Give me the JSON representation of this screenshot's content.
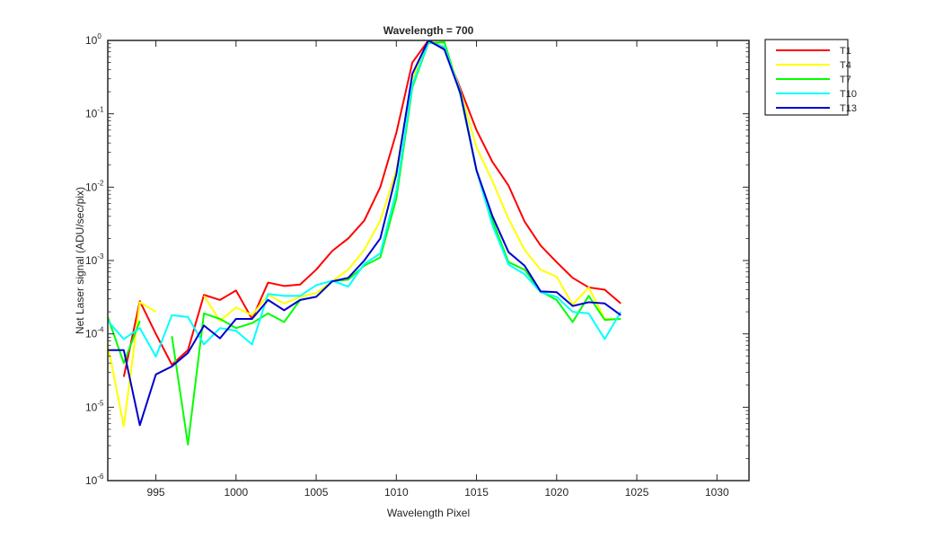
{
  "chart_data": {
    "type": "line",
    "title": "Wavelength = 700",
    "xlabel": "Wavelength Pixel",
    "ylabel": "Net Laser signal  (ADU/sec/pix)",
    "xlim": [
      992,
      1032
    ],
    "ylim": [
      1e-06,
      1
    ],
    "yscale": "log",
    "xticks": [
      995,
      1000,
      1005,
      1010,
      1015,
      1020,
      1025,
      1030
    ],
    "yticks": [
      {
        "exp": -6,
        "label": "10",
        "sup": "-6"
      },
      {
        "exp": -5,
        "label": "10",
        "sup": "-5"
      },
      {
        "exp": -4,
        "label": "10",
        "sup": "-4"
      },
      {
        "exp": -3,
        "label": "10",
        "sup": "-3"
      },
      {
        "exp": -2,
        "label": "10",
        "sup": "-2"
      },
      {
        "exp": -1,
        "label": "10",
        "sup": "-1"
      },
      {
        "exp": 0,
        "label": "10",
        "sup": "0"
      }
    ],
    "grid": false,
    "legend_position": "outside-top-right",
    "series": [
      {
        "name": "T1",
        "color": "#ff0000",
        "segments": [
          [
            [
              993,
              2.6e-05
            ],
            [
              994,
              0.00028
            ],
            [
              995,
              0.0001
            ],
            [
              996,
              3.8e-05
            ],
            [
              997,
              6e-05
            ],
            [
              998,
              0.00034
            ],
            [
              999,
              0.00029
            ],
            [
              1000,
              0.00039
            ],
            [
              1001,
              0.00016
            ],
            [
              1002,
              0.0005
            ],
            [
              1003,
              0.00045
            ],
            [
              1004,
              0.00047
            ],
            [
              1005,
              0.00075
            ],
            [
              1006,
              0.00135
            ],
            [
              1007,
              0.002
            ],
            [
              1008,
              0.0035
            ],
            [
              1009,
              0.01
            ],
            [
              1010,
              0.055
            ],
            [
              1011,
              0.5
            ],
            [
              1012,
              1.0
            ],
            [
              1013,
              0.8
            ],
            [
              1014,
              0.22
            ],
            [
              1015,
              0.06
            ],
            [
              1016,
              0.022
            ],
            [
              1017,
              0.0105
            ],
            [
              1018,
              0.0034
            ],
            [
              1019,
              0.0016
            ],
            [
              1020,
              0.00095
            ],
            [
              1021,
              0.00058
            ],
            [
              1022,
              0.00043
            ],
            [
              1023,
              0.0004
            ],
            [
              1024,
              0.00026
            ]
          ]
        ]
      },
      {
        "name": "T4",
        "color": "#ffff00",
        "segments": [
          [
            [
              992,
              7e-05
            ],
            [
              993,
              5.5e-06
            ],
            [
              994,
              0.00027
            ],
            [
              995,
              0.0002
            ]
          ],
          [
            [
              998,
              0.00033
            ],
            [
              999,
              0.00015
            ],
            [
              1000,
              0.00023
            ],
            [
              1001,
              0.00018
            ],
            [
              1002,
              0.00034
            ],
            [
              1003,
              0.00026
            ],
            [
              1004,
              0.00032
            ],
            [
              1005,
              0.00036
            ],
            [
              1006,
              0.00052
            ],
            [
              1007,
              0.00075
            ],
            [
              1008,
              0.0014
            ],
            [
              1009,
              0.0035
            ],
            [
              1010,
              0.017
            ],
            [
              1011,
              0.3
            ],
            [
              1012,
              0.95
            ],
            [
              1013,
              0.92
            ],
            [
              1014,
              0.2
            ],
            [
              1015,
              0.035
            ],
            [
              1016,
              0.012
            ],
            [
              1017,
              0.0037
            ],
            [
              1018,
              0.0014
            ],
            [
              1019,
              0.00075
            ],
            [
              1020,
              0.0006
            ],
            [
              1021,
              0.00025
            ],
            [
              1022,
              0.00043
            ],
            [
              1023,
              0.00016
            ],
            [
              1024,
              0.00016
            ]
          ]
        ]
      },
      {
        "name": "T7",
        "color": "#00ff00",
        "segments": [
          [
            [
              992,
              0.00017
            ],
            [
              993,
              4e-05
            ],
            [
              994,
              0.00015
            ]
          ],
          [
            [
              996,
              9.3e-05
            ],
            [
              997,
              3.1e-06
            ],
            [
              998,
              0.00019
            ],
            [
              999,
              0.00016
            ],
            [
              1000,
              0.00012
            ],
            [
              1001,
              0.00014
            ],
            [
              1002,
              0.00019
            ],
            [
              1003,
              0.000145
            ],
            [
              1004,
              0.00029
            ],
            [
              1005,
              0.00032
            ],
            [
              1006,
              0.00052
            ],
            [
              1007,
              0.00055
            ],
            [
              1008,
              0.00085
            ],
            [
              1009,
              0.0011
            ],
            [
              1010,
              0.007
            ],
            [
              1011,
              0.23
            ],
            [
              1012,
              0.92
            ],
            [
              1013,
              0.95
            ],
            [
              1014,
              0.18
            ],
            [
              1015,
              0.017
            ],
            [
              1016,
              0.0035
            ],
            [
              1017,
              0.00095
            ],
            [
              1018,
              0.00075
            ],
            [
              1019,
              0.00038
            ],
            [
              1020,
              0.00029
            ],
            [
              1021,
              0.000145
            ],
            [
              1022,
              0.00033
            ],
            [
              1023,
              0.000155
            ],
            [
              1024,
              0.00016
            ]
          ]
        ]
      },
      {
        "name": "T10",
        "color": "#00ffff",
        "segments": [
          [
            [
              992,
              0.00015
            ],
            [
              993,
              8.5e-05
            ],
            [
              994,
              0.00012
            ],
            [
              995,
              4.9e-05
            ],
            [
              996,
              0.00018
            ],
            [
              997,
              0.00017
            ],
            [
              998,
              7.2e-05
            ],
            [
              999,
              0.00012
            ],
            [
              1000,
              0.00011
            ],
            [
              1001,
              7.2e-05
            ],
            [
              1002,
              0.00035
            ],
            [
              1003,
              0.00033
            ],
            [
              1004,
              0.00033
            ],
            [
              1005,
              0.00046
            ],
            [
              1006,
              0.00053
            ],
            [
              1007,
              0.00044
            ],
            [
              1008,
              0.0009
            ],
            [
              1009,
              0.00125
            ],
            [
              1010,
              0.009
            ],
            [
              1011,
              0.25
            ],
            [
              1012,
              0.95
            ],
            [
              1013,
              0.82
            ],
            [
              1014,
              0.2
            ],
            [
              1015,
              0.017
            ],
            [
              1016,
              0.003
            ],
            [
              1017,
              0.00088
            ],
            [
              1018,
              0.00065
            ],
            [
              1019,
              0.00037
            ],
            [
              1020,
              0.00032
            ],
            [
              1021,
              0.0002
            ],
            [
              1022,
              0.00019
            ],
            [
              1023,
              8.5e-05
            ],
            [
              1024,
              0.0002
            ]
          ]
        ]
      },
      {
        "name": "T13",
        "color": "#0000cd",
        "segments": [
          [
            [
              992,
              6e-05
            ],
            [
              993,
              6e-05
            ],
            [
              994,
              5.7e-06
            ],
            [
              995,
              2.8e-05
            ],
            [
              996,
              3.6e-05
            ],
            [
              997,
              5.5e-05
            ],
            [
              998,
              0.00013
            ],
            [
              999,
              8.7e-05
            ],
            [
              1000,
              0.00016
            ],
            [
              1001,
              0.00016
            ],
            [
              1002,
              0.00029
            ],
            [
              1003,
              0.00021
            ],
            [
              1004,
              0.00029
            ],
            [
              1005,
              0.00032
            ],
            [
              1006,
              0.00052
            ],
            [
              1007,
              0.00058
            ],
            [
              1008,
              0.001
            ],
            [
              1009,
              0.002
            ],
            [
              1010,
              0.015
            ],
            [
              1011,
              0.35
            ],
            [
              1012,
              1.0
            ],
            [
              1013,
              0.75
            ],
            [
              1014,
              0.19
            ],
            [
              1015,
              0.017
            ],
            [
              1016,
              0.004
            ],
            [
              1017,
              0.0013
            ],
            [
              1018,
              0.00085
            ],
            [
              1019,
              0.00038
            ],
            [
              1020,
              0.00037
            ],
            [
              1021,
              0.00024
            ],
            [
              1022,
              0.00027
            ],
            [
              1023,
              0.00026
            ],
            [
              1024,
              0.00018
            ]
          ]
        ]
      }
    ]
  }
}
